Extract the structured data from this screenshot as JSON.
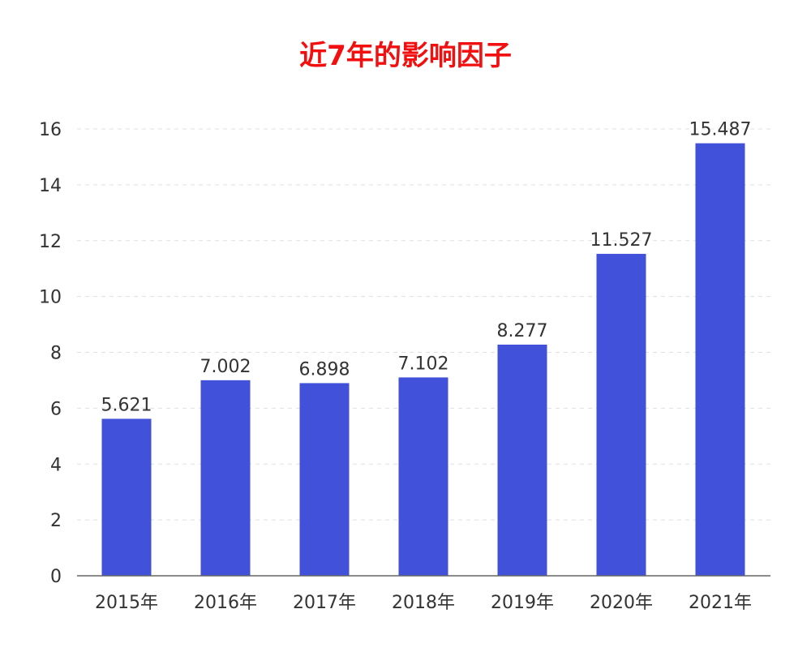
{
  "chart_data": {
    "type": "bar",
    "title": "近7年的影响因子",
    "categories": [
      "2015年",
      "2016年",
      "2017年",
      "2018年",
      "2019年",
      "2020年",
      "2021年"
    ],
    "values": [
      5.621,
      7.002,
      6.898,
      7.102,
      8.277,
      11.527,
      15.487
    ],
    "value_labels": [
      "5.621",
      "7.002",
      "6.898",
      "7.102",
      "8.277",
      "11.527",
      "15.487"
    ],
    "xlabel": "",
    "ylabel": "",
    "ylim": [
      0,
      16
    ],
    "yticks": [
      0,
      2,
      4,
      6,
      8,
      10,
      12,
      14,
      16
    ],
    "grid": true,
    "legend": "none",
    "colors": {
      "bar": "#4151DA",
      "title": "#F20F0F",
      "text": "#333333",
      "grid": "#E0E0E0",
      "axis": "#666666"
    }
  }
}
